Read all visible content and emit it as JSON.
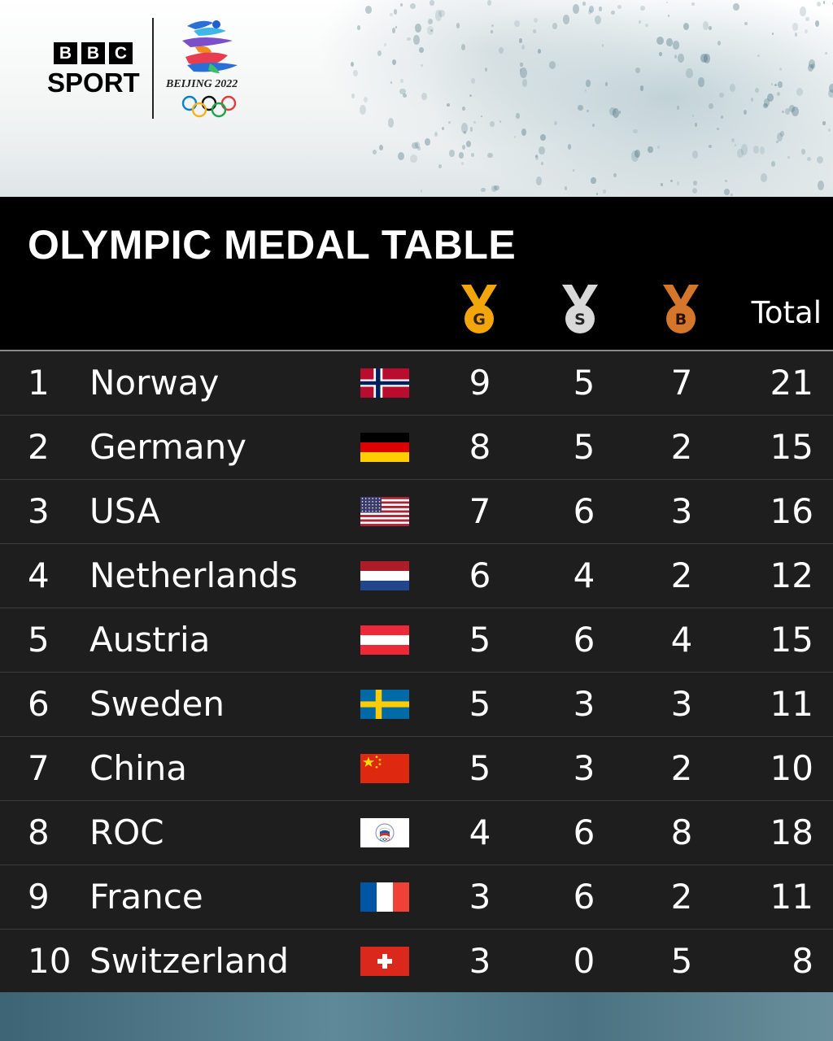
{
  "brand": {
    "bbc_letters": [
      "B",
      "B",
      "C"
    ],
    "sport": "SPORT",
    "games": "BEIJING 2022"
  },
  "table": {
    "title": "OLYMPIC MEDAL TABLE",
    "headers": {
      "gold": "G",
      "silver": "S",
      "bronze": "B",
      "total": "Total"
    },
    "rows": [
      {
        "rank": "1",
        "country": "Norway",
        "flag": "norway-flag",
        "gold": "9",
        "silver": "5",
        "bronze": "7",
        "total": "21"
      },
      {
        "rank": "2",
        "country": "Germany",
        "flag": "germany-flag",
        "gold": "8",
        "silver": "5",
        "bronze": "2",
        "total": "15"
      },
      {
        "rank": "3",
        "country": "USA",
        "flag": "usa-flag",
        "gold": "7",
        "silver": "6",
        "bronze": "3",
        "total": "16"
      },
      {
        "rank": "4",
        "country": "Netherlands",
        "flag": "netherlands-flag",
        "gold": "6",
        "silver": "4",
        "bronze": "2",
        "total": "12"
      },
      {
        "rank": "5",
        "country": "Austria",
        "flag": "austria-flag",
        "gold": "5",
        "silver": "6",
        "bronze": "4",
        "total": "15"
      },
      {
        "rank": "6",
        "country": "Sweden",
        "flag": "sweden-flag",
        "gold": "5",
        "silver": "3",
        "bronze": "3",
        "total": "11"
      },
      {
        "rank": "7",
        "country": "China",
        "flag": "china-flag",
        "gold": "5",
        "silver": "3",
        "bronze": "2",
        "total": "10"
      },
      {
        "rank": "8",
        "country": "ROC",
        "flag": "roc-flag",
        "gold": "4",
        "silver": "6",
        "bronze": "8",
        "total": "18"
      },
      {
        "rank": "9",
        "country": "France",
        "flag": "france-flag",
        "gold": "3",
        "silver": "6",
        "bronze": "2",
        "total": "11"
      },
      {
        "rank": "10",
        "country": "Switzerland",
        "flag": "switzerland-flag",
        "gold": "3",
        "silver": "0",
        "bronze": "5",
        "total": "8"
      }
    ]
  },
  "colors": {
    "gold": "#f2a60c",
    "silver": "#d9d9d9",
    "bronze": "#d4772c",
    "row_bg": "#1e1e1e",
    "header_bg": "#000000"
  }
}
